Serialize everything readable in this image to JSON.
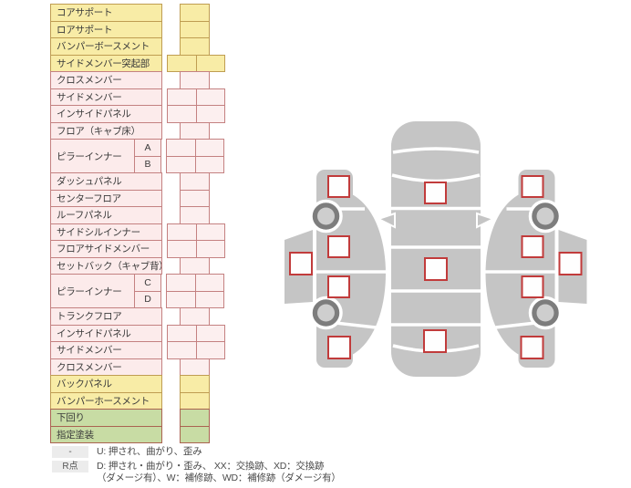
{
  "colors": {
    "yellow_bg": "#f8eca6",
    "yellow_border": "#bf9d52",
    "pink_bg": "#fcebeb",
    "pink_cell_bg": "#fcefef",
    "pink_border": "#c48181",
    "green_bg": "#c8dca4",
    "green_border": "#aa6351",
    "legend_box_bg": "#ececec",
    "marker_red": "#c13b3b",
    "car_gray": "#c5c5c5",
    "wheel_dark": "#7d7d7d",
    "wheel_light": "#cecece"
  },
  "table": {
    "rows": [
      {
        "label": "コアサポート",
        "color": "yellow",
        "cells": 1
      },
      {
        "label": "ロアサポート",
        "color": "yellow",
        "cells": 1
      },
      {
        "label": "バンパーボースメント",
        "color": "yellow",
        "cells": 1
      },
      {
        "label": "サイドメンバー突起部",
        "color": "yellow",
        "cells": 2
      },
      {
        "label": "クロスメンバー",
        "color": "pink",
        "cells": 1
      },
      {
        "label": "サイドメンバー",
        "color": "pink",
        "cells": 2
      },
      {
        "label": "インサイドパネル",
        "color": "pink",
        "cells": 2
      },
      {
        "label": "フロア（キャブ床）",
        "color": "pink",
        "cells": 1
      },
      {
        "label": "ピラーインナー",
        "color": "pink",
        "cells": 2,
        "subs": [
          "A",
          "B"
        ]
      },
      {
        "label": "ダッシュパネル",
        "color": "pink",
        "cells": 1
      },
      {
        "label": "センターフロア",
        "color": "pink",
        "cells": 1
      },
      {
        "label": "ルーフパネル",
        "color": "pink",
        "cells": 1
      },
      {
        "label": "サイドシルインナー",
        "color": "pink",
        "cells": 2
      },
      {
        "label": "フロアサイドメンバー",
        "color": "pink",
        "cells": 2
      },
      {
        "label": "セットバック（キャブ背）",
        "color": "pink",
        "cells": 1
      },
      {
        "label": "ピラーインナー",
        "color": "pink",
        "cells": 2,
        "subs": [
          "C",
          "D"
        ]
      },
      {
        "label": "トランクフロア",
        "color": "pink",
        "cells": 1
      },
      {
        "label": "インサイドパネル",
        "color": "pink",
        "cells": 2
      },
      {
        "label": "サイドメンバー",
        "color": "pink",
        "cells": 2
      },
      {
        "label": "クロスメンバー",
        "color": "pink",
        "cells": 1
      },
      {
        "label": "バックパネル",
        "color": "yellow",
        "cells": 1
      },
      {
        "label": "バンパーホースメント",
        "color": "yellow",
        "cells": 1
      },
      {
        "label": "下回り",
        "color": "green",
        "cells": 1
      },
      {
        "label": "指定塗装",
        "color": "green",
        "cells": 1
      }
    ]
  },
  "legend": {
    "rows": [
      {
        "key": "-",
        "text": "U: 押され、曲がり、歪み"
      },
      {
        "key": "R点",
        "text": "D: 押され・曲がり・歪み、 XX：交換跡、XD：交換跡",
        "text2": "（ダメージ有）、W：補修跡、WD：補修跡（ダメージ有）"
      }
    ]
  },
  "diagram": {
    "views": [
      {
        "name": "left-side-view",
        "marker_count": 5,
        "wheel_count": 2
      },
      {
        "name": "top-view",
        "marker_count": 3,
        "wheel_count": 0
      },
      {
        "name": "right-side-view",
        "marker_count": 5,
        "wheel_count": 2
      }
    ]
  }
}
